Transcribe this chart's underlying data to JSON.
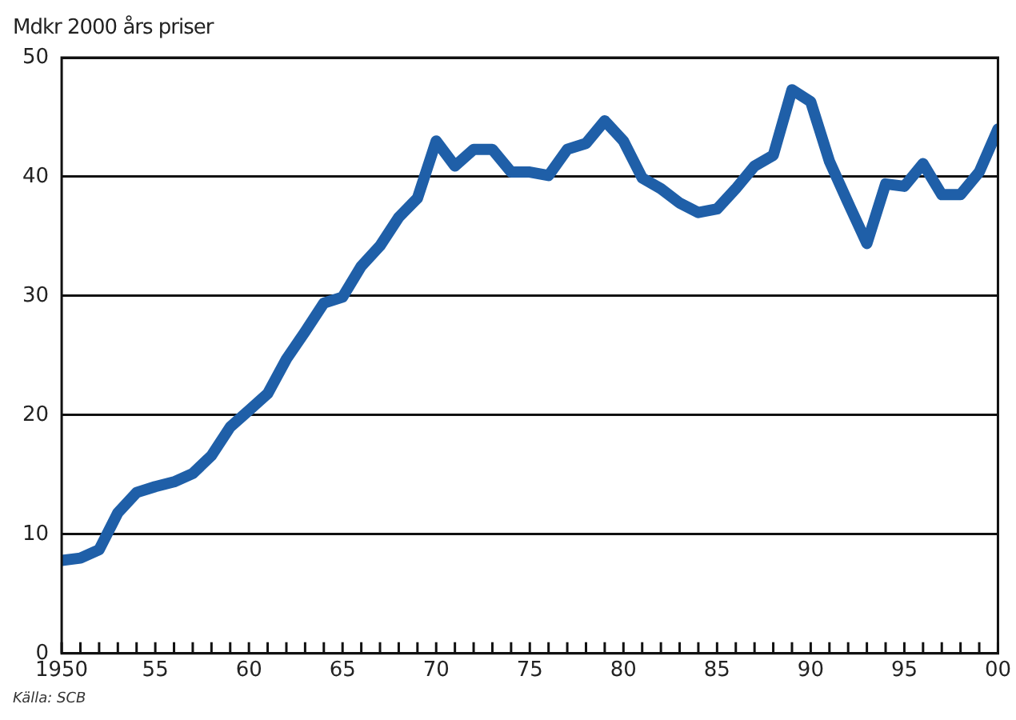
{
  "chart_data": {
    "type": "line",
    "ylabel": "Mdkr 2000 års priser",
    "annotations": [
      "Källa: SCB"
    ],
    "x": [
      1950,
      1951,
      1952,
      1953,
      1954,
      1955,
      1956,
      1957,
      1958,
      1959,
      1960,
      1961,
      1962,
      1963,
      1964,
      1965,
      1966,
      1967,
      1968,
      1969,
      1970,
      1971,
      1972,
      1973,
      1974,
      1975,
      1976,
      1977,
      1978,
      1979,
      1980,
      1981,
      1982,
      1983,
      1984,
      1985,
      1986,
      1987,
      1988,
      1989,
      1990,
      1991,
      1992,
      1993,
      1994,
      1995,
      1996,
      1997,
      1998,
      1999,
      2000
    ],
    "series": [
      {
        "color": "#1f5fa8",
        "values": [
          7.8,
          8.0,
          8.7,
          11.8,
          13.5,
          14.0,
          14.4,
          15.1,
          16.6,
          19.0,
          20.4,
          21.8,
          24.7,
          27.0,
          29.4,
          29.9,
          32.5,
          34.2,
          36.6,
          38.2,
          43.0,
          40.9,
          42.3,
          42.3,
          40.4,
          40.4,
          40.1,
          42.3,
          42.8,
          44.7,
          43.0,
          39.9,
          39.0,
          37.8,
          37.0,
          37.3,
          39.0,
          40.9,
          41.8,
          47.3,
          46.3,
          41.3,
          37.8,
          34.4,
          39.4,
          39.2,
          41.1,
          38.5,
          38.5,
          40.4,
          44.0
        ]
      }
    ],
    "xlim": [
      1950,
      2000
    ],
    "xticks": [
      {
        "value": 1950,
        "label": "1950"
      },
      {
        "value": 1951,
        "label": null
      },
      {
        "value": 1952,
        "label": null
      },
      {
        "value": 1953,
        "label": null
      },
      {
        "value": 1954,
        "label": null
      },
      {
        "value": 1955,
        "label": "55"
      },
      {
        "value": 1956,
        "label": null
      },
      {
        "value": 1957,
        "label": null
      },
      {
        "value": 1958,
        "label": null
      },
      {
        "value": 1959,
        "label": null
      },
      {
        "value": 1960,
        "label": "60"
      },
      {
        "value": 1961,
        "label": null
      },
      {
        "value": 1962,
        "label": null
      },
      {
        "value": 1963,
        "label": null
      },
      {
        "value": 1964,
        "label": null
      },
      {
        "value": 1965,
        "label": "65"
      },
      {
        "value": 1966,
        "label": null
      },
      {
        "value": 1967,
        "label": null
      },
      {
        "value": 1968,
        "label": null
      },
      {
        "value": 1969,
        "label": null
      },
      {
        "value": 1970,
        "label": "70"
      },
      {
        "value": 1971,
        "label": null
      },
      {
        "value": 1972,
        "label": null
      },
      {
        "value": 1973,
        "label": null
      },
      {
        "value": 1974,
        "label": null
      },
      {
        "value": 1975,
        "label": "75"
      },
      {
        "value": 1976,
        "label": null
      },
      {
        "value": 1977,
        "label": null
      },
      {
        "value": 1978,
        "label": null
      },
      {
        "value": 1979,
        "label": null
      },
      {
        "value": 1980,
        "label": "80"
      },
      {
        "value": 1981,
        "label": null
      },
      {
        "value": 1982,
        "label": null
      },
      {
        "value": 1983,
        "label": null
      },
      {
        "value": 1984,
        "label": null
      },
      {
        "value": 1985,
        "label": "85"
      },
      {
        "value": 1986,
        "label": null
      },
      {
        "value": 1987,
        "label": null
      },
      {
        "value": 1988,
        "label": null
      },
      {
        "value": 1989,
        "label": null
      },
      {
        "value": 1990,
        "label": "90"
      },
      {
        "value": 1991,
        "label": null
      },
      {
        "value": 1992,
        "label": null
      },
      {
        "value": 1993,
        "label": null
      },
      {
        "value": 1994,
        "label": null
      },
      {
        "value": 1995,
        "label": "95"
      },
      {
        "value": 1996,
        "label": null
      },
      {
        "value": 1997,
        "label": null
      },
      {
        "value": 1998,
        "label": null
      },
      {
        "value": 1999,
        "label": null
      },
      {
        "value": 2000,
        "label": "00"
      }
    ],
    "ylim": [
      0,
      50
    ],
    "yticks": [
      0,
      10,
      20,
      30,
      40,
      50
    ],
    "grid": "y",
    "legend": false,
    "marker": "none",
    "line_style": "solid"
  }
}
